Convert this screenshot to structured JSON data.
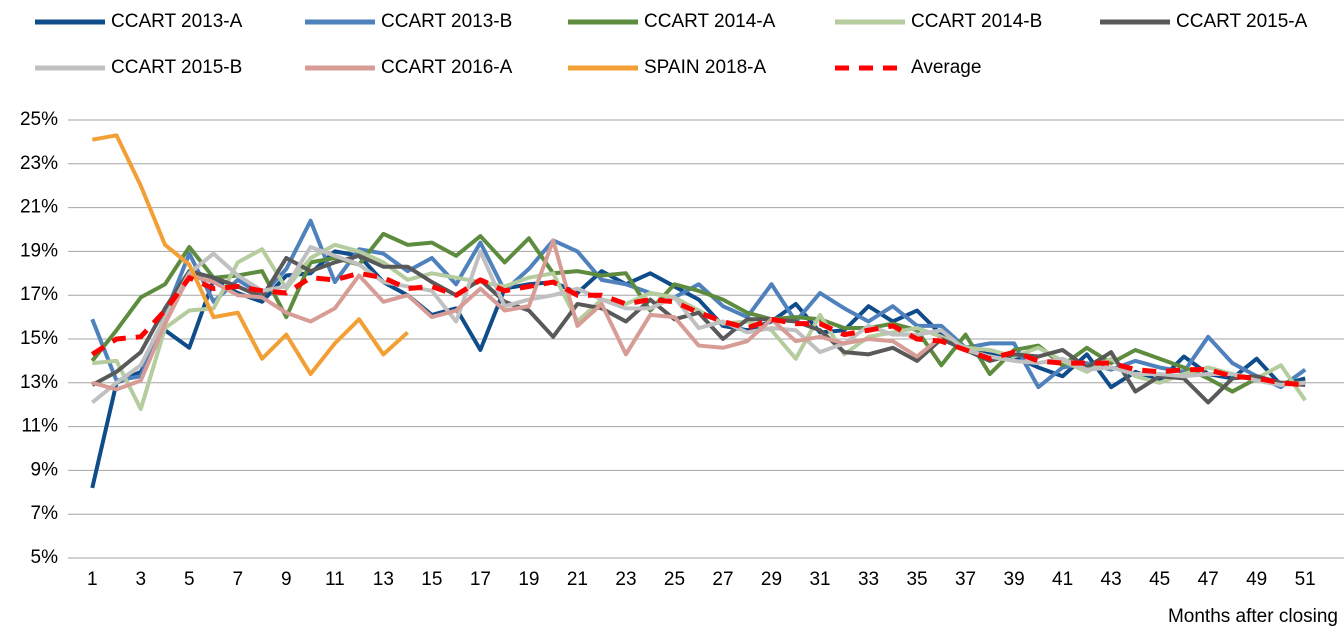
{
  "chart_data": {
    "type": "line",
    "x_label": "Months after closing",
    "x": [
      1,
      2,
      3,
      4,
      5,
      6,
      7,
      8,
      9,
      10,
      11,
      12,
      13,
      14,
      15,
      16,
      17,
      18,
      19,
      20,
      21,
      22,
      23,
      24,
      25,
      26,
      27,
      28,
      29,
      30,
      31,
      32,
      33,
      34,
      35,
      36,
      37,
      38,
      39,
      40,
      41,
      42,
      43,
      44,
      45,
      46,
      47,
      48,
      49,
      50,
      51
    ],
    "xlim": [
      0,
      52.6
    ],
    "xticks": [
      1,
      3,
      5,
      7,
      9,
      11,
      13,
      15,
      17,
      19,
      21,
      23,
      25,
      27,
      29,
      31,
      33,
      35,
      37,
      39,
      41,
      43,
      45,
      47,
      49,
      51
    ],
    "ylim": [
      5,
      25
    ],
    "yticks": [
      {
        "value": 5,
        "label": "5%"
      },
      {
        "value": 7,
        "label": "7%"
      },
      {
        "value": 9,
        "label": "9%"
      },
      {
        "value": 11,
        "label": "11%"
      },
      {
        "value": 13,
        "label": "13%"
      },
      {
        "value": 15,
        "label": "15%"
      },
      {
        "value": 17,
        "label": "17%"
      },
      {
        "value": 19,
        "label": "19%"
      },
      {
        "value": 21,
        "label": "21%"
      },
      {
        "value": 23,
        "label": "23%"
      },
      {
        "value": 25,
        "label": "25%"
      }
    ],
    "grid": true,
    "legend": "top",
    "series": [
      {
        "name": "CCART 2013-A",
        "color": "#0f4c8a",
        "values": [
          8.2,
          13.0,
          13.5,
          15.4,
          14.6,
          17.7,
          17.1,
          16.7,
          17.9,
          18.0,
          19.0,
          18.8,
          17.6,
          17.0,
          16.1,
          16.4,
          14.5,
          17.3,
          17.5,
          17.6,
          17.1,
          18.1,
          17.5,
          18.0,
          17.4,
          16.8,
          15.6,
          15.4,
          15.8,
          16.6,
          15.3,
          15.4,
          16.5,
          15.8,
          16.3,
          15.2,
          14.5,
          14.3,
          14.2,
          13.7,
          13.3,
          14.3,
          12.8,
          13.5,
          13.1,
          14.2,
          13.4,
          13.2,
          14.1,
          12.9,
          13.2
        ]
      },
      {
        "name": "CCART 2013-B",
        "color": "#4f81bd",
        "values": [
          15.9,
          13.1,
          13.3,
          16.1,
          18.9,
          16.7,
          17.7,
          17.0,
          18.2,
          20.4,
          17.6,
          19.1,
          18.9,
          18.1,
          18.7,
          17.5,
          19.4,
          17.2,
          18.2,
          19.5,
          19.0,
          17.7,
          17.5,
          17.1,
          16.9,
          17.5,
          16.5,
          16.0,
          17.5,
          15.8,
          17.1,
          16.4,
          15.8,
          16.5,
          15.6,
          15.6,
          14.6,
          14.8,
          14.8,
          12.8,
          13.7,
          13.9,
          13.6,
          14.0,
          13.7,
          13.5,
          15.1,
          13.9,
          13.3,
          12.8,
          13.6
        ]
      },
      {
        "name": "CCART 2014-A",
        "color": "#5e8c3e",
        "values": [
          14.0,
          15.4,
          16.9,
          17.5,
          19.2,
          17.8,
          17.9,
          18.1,
          16.0,
          18.5,
          18.7,
          18.4,
          19.8,
          19.3,
          19.4,
          18.8,
          19.7,
          18.5,
          19.6,
          18.0,
          18.1,
          17.9,
          18.0,
          16.3,
          17.5,
          17.2,
          16.8,
          16.2,
          15.9,
          16.0,
          15.9,
          15.5,
          15.5,
          15.7,
          15.4,
          13.8,
          15.2,
          13.4,
          14.5,
          14.7,
          13.8,
          14.6,
          13.9,
          14.5,
          14.1,
          13.7,
          13.2,
          12.6,
          13.2,
          13.0,
          13.0
        ]
      },
      {
        "name": "CCART 2014-B",
        "color": "#b5cc9e",
        "values": [
          13.9,
          14.0,
          11.8,
          15.5,
          16.3,
          16.4,
          18.5,
          19.1,
          17.3,
          18.7,
          19.3,
          19.0,
          18.5,
          17.7,
          18.0,
          17.8,
          17.6,
          17.4,
          17.8,
          18.0,
          15.8,
          16.8,
          16.6,
          17.1,
          16.9,
          16.3,
          15.7,
          15.8,
          15.4,
          14.1,
          16.1,
          14.3,
          15.1,
          15.3,
          15.5,
          15.1,
          14.6,
          14.5,
          14.2,
          14.6,
          14.0,
          13.5,
          14.1,
          13.3,
          13.0,
          13.4,
          13.7,
          13.4,
          13.2,
          13.8,
          12.2
        ]
      },
      {
        "name": "CCART 2015-A",
        "color": "#595959",
        "values": [
          12.9,
          13.5,
          14.4,
          16.4,
          18.1,
          17.8,
          17.4,
          16.9,
          18.7,
          18.1,
          18.5,
          18.8,
          18.3,
          18.3,
          17.6,
          17.0,
          17.7,
          16.7,
          16.3,
          15.1,
          16.6,
          16.4,
          15.8,
          16.8,
          15.9,
          16.2,
          15.0,
          15.9,
          15.9,
          15.8,
          15.4,
          14.4,
          14.3,
          14.6,
          14.0,
          15.0,
          14.5,
          14.0,
          14.3,
          14.2,
          14.5,
          13.7,
          14.4,
          12.6,
          13.3,
          13.2,
          12.1,
          13.2,
          13.3,
          13.0,
          12.9
        ]
      },
      {
        "name": "CCART 2015-B",
        "color": "#c0c0c0",
        "values": [
          12.1,
          13.0,
          13.8,
          16.0,
          18.0,
          18.9,
          17.9,
          17.2,
          17.4,
          19.2,
          18.8,
          18.4,
          17.6,
          17.4,
          17.2,
          15.8,
          19.0,
          16.5,
          16.8,
          17.0,
          17.3,
          16.8,
          16.4,
          16.4,
          16.9,
          15.5,
          15.8,
          15.3,
          15.5,
          15.4,
          14.4,
          14.8,
          15.6,
          15.2,
          15.2,
          15.4,
          14.5,
          14.2,
          14.0,
          13.9,
          14.1,
          13.6,
          13.7,
          13.4,
          13.4,
          13.3,
          13.4,
          13.4,
          13.1,
          12.9,
          13.0
        ]
      },
      {
        "name": "CCART 2016-A",
        "color": "#d69c95",
        "values": [
          13.0,
          12.7,
          13.1,
          15.7,
          17.9,
          17.6,
          17.0,
          16.9,
          16.2,
          15.8,
          16.4,
          17.9,
          16.7,
          17.0,
          16.0,
          16.3,
          17.3,
          16.3,
          16.5,
          19.5,
          15.6,
          16.6,
          14.3,
          16.1,
          16.0,
          14.7,
          14.6,
          14.9,
          15.9,
          14.9,
          15.1,
          14.8,
          15.0,
          14.9,
          14.2,
          15.1,
          null,
          null,
          null,
          null,
          null,
          null,
          null,
          null,
          null,
          null,
          null,
          null,
          null,
          null,
          null
        ]
      },
      {
        "name": "SPAIN 2018-A",
        "color": "#f2a035",
        "values": [
          24.1,
          24.3,
          22.0,
          19.3,
          18.4,
          16.0,
          16.2,
          14.1,
          15.2,
          13.4,
          14.8,
          15.9,
          14.3,
          15.3,
          null,
          null,
          null,
          null,
          null,
          null,
          null,
          null,
          null,
          null,
          null,
          null,
          null,
          null,
          null,
          null,
          null,
          null,
          null,
          null,
          null,
          null,
          null,
          null,
          null,
          null,
          null,
          null,
          null,
          null,
          null,
          null,
          null,
          null,
          null,
          null,
          null
        ]
      },
      {
        "name": "Average",
        "color": "#ff0000",
        "dashed": true,
        "values": [
          14.3,
          15.0,
          15.1,
          16.3,
          17.8,
          17.3,
          17.4,
          17.2,
          17.1,
          17.8,
          17.7,
          18.0,
          17.8,
          17.3,
          17.4,
          17.0,
          17.7,
          17.2,
          17.4,
          17.6,
          17.0,
          17.0,
          16.6,
          16.8,
          16.7,
          16.2,
          15.8,
          15.5,
          15.9,
          15.7,
          15.7,
          15.2,
          15.4,
          15.6,
          15.0,
          14.9,
          14.5,
          14.1,
          14.4,
          14.0,
          13.9,
          13.9,
          13.9,
          13.6,
          13.5,
          13.6,
          13.6,
          13.3,
          13.2,
          13.0,
          12.9
        ]
      }
    ]
  }
}
